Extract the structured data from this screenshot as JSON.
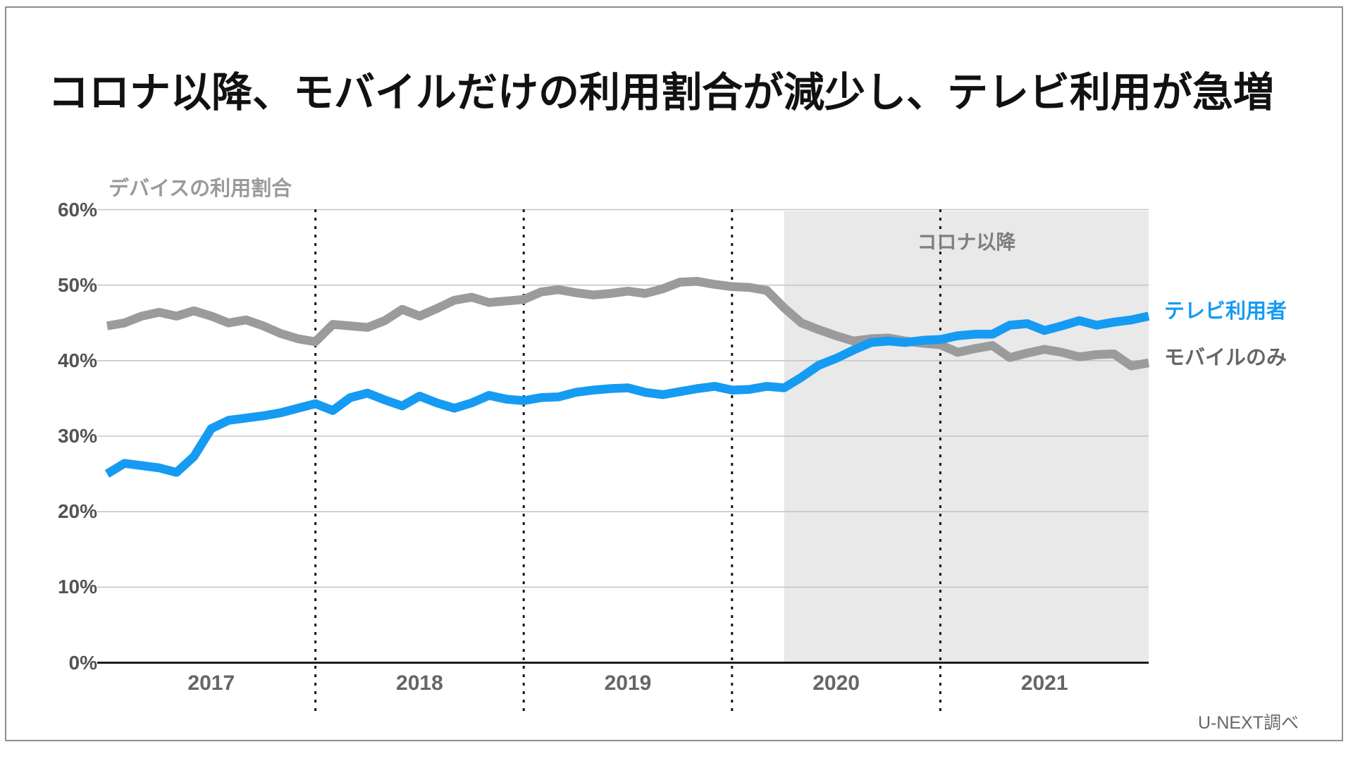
{
  "page": {
    "background": "#ffffff",
    "border_color": "#8f8f8f"
  },
  "title": "コロナ以降、モバイルだけの利用割合が減少し、テレビ利用が急増",
  "source_note": "U-NEXT調べ",
  "chart_data": {
    "type": "line",
    "title": "デバイスの利用割合",
    "unit": "%",
    "ylim": [
      0,
      60
    ],
    "y_ticks": [
      "0%",
      "10%",
      "20%",
      "30%",
      "40%",
      "50%",
      "60%"
    ],
    "x_tick_labels": [
      "2017",
      "2018",
      "2019",
      "2020",
      "2021"
    ],
    "x_start_year": 2017,
    "points_per_year": 12,
    "grid": "horizontal light gray lines; dotted black vertical year separators",
    "legend_position": "right of line ends",
    "gridline_color": "#c6c6c6",
    "baseline_color": "#1c1c1c",
    "separator_color": "#151515",
    "shaded_region": {
      "label": "コロナ以降",
      "start_year": 2020,
      "start_month": 4,
      "end": "right edge of chart",
      "color": "#e9e9e9",
      "label_color": "#7f7f7f"
    },
    "series": [
      {
        "name": "テレビ利用者",
        "color": "#169bf2",
        "label_color": "#169bf2",
        "values": [
          25.0,
          26.4,
          26.1,
          25.8,
          25.2,
          27.3,
          31.0,
          32.1,
          32.4,
          32.7,
          33.1,
          33.7,
          34.3,
          33.4,
          35.1,
          35.7,
          34.8,
          34.0,
          35.3,
          34.4,
          33.7,
          34.4,
          35.4,
          34.9,
          34.7,
          35.1,
          35.2,
          35.8,
          36.1,
          36.3,
          36.4,
          35.8,
          35.5,
          35.9,
          36.3,
          36.6,
          36.1,
          36.2,
          36.6,
          36.4,
          37.8,
          39.4,
          40.3,
          41.4,
          42.4,
          42.6,
          42.4,
          42.7,
          42.8,
          43.3,
          43.5,
          43.5,
          44.7,
          44.9,
          44.0,
          44.6,
          45.3,
          44.7,
          45.1,
          45.4,
          45.9
        ]
      },
      {
        "name": "モバイルのみ",
        "color": "#9b9b9b",
        "label_color": "#666666",
        "values": [
          44.6,
          45.0,
          45.9,
          46.4,
          45.9,
          46.6,
          45.9,
          45.0,
          45.4,
          44.6,
          43.6,
          42.9,
          42.5,
          44.8,
          44.6,
          44.4,
          45.3,
          46.8,
          45.9,
          46.9,
          48.0,
          48.4,
          47.7,
          47.9,
          48.1,
          49.1,
          49.4,
          49.0,
          48.7,
          48.9,
          49.2,
          48.9,
          49.5,
          50.4,
          50.5,
          50.1,
          49.8,
          49.7,
          49.3,
          47.0,
          45.0,
          44.1,
          43.3,
          42.6,
          42.9,
          43.0,
          42.6,
          42.3,
          42.1,
          41.1,
          41.6,
          42.0,
          40.4,
          41.0,
          41.5,
          41.1,
          40.5,
          40.8,
          40.9,
          39.3,
          39.7
        ]
      }
    ]
  }
}
